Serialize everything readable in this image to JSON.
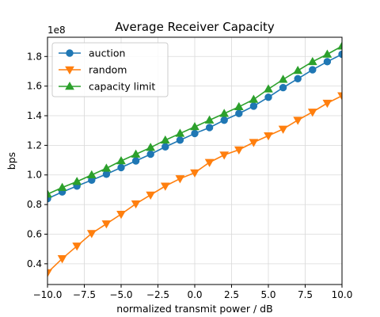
{
  "chart_data": {
    "type": "line",
    "title": "Average Receiver Capacity",
    "xlabel": "normalized transmit power / dB",
    "ylabel": "bps",
    "y_multiplier": "1e8",
    "xlim": [
      -10,
      10
    ],
    "ylim": [
      0.26,
      1.93
    ],
    "xticks": [
      -10,
      -7.5,
      -5,
      -2.5,
      0,
      2.5,
      5,
      7.5,
      10
    ],
    "xtick_labels": [
      "−10.0",
      "−7.5",
      "−5.0",
      "−2.5",
      "0.0",
      "2.5",
      "5.0",
      "7.5",
      "10.0"
    ],
    "yticks": [
      0.4,
      0.6,
      0.8,
      1.0,
      1.2,
      1.4,
      1.6,
      1.8
    ],
    "ytick_labels": [
      "0.4",
      "0.6",
      "0.8",
      "1.0",
      "1.2",
      "1.4",
      "1.6",
      "1.8"
    ],
    "grid": true,
    "legend_position": "top-left",
    "x": [
      -10,
      -9,
      -8,
      -7,
      -6,
      -5,
      -4,
      -3,
      -2,
      -1,
      0,
      1,
      2,
      3,
      4,
      5,
      6,
      7,
      8,
      9,
      10
    ],
    "series": [
      {
        "name": "auction",
        "color": "#1f77b4",
        "marker": "circle",
        "values": [
          0.84,
          0.885,
          0.925,
          0.965,
          1.005,
          1.05,
          1.095,
          1.14,
          1.19,
          1.235,
          1.28,
          1.32,
          1.37,
          1.415,
          1.465,
          1.525,
          1.59,
          1.65,
          1.71,
          1.765,
          1.815
        ]
      },
      {
        "name": "random",
        "color": "#ff7f0e",
        "marker": "triangle-down",
        "values": [
          0.34,
          0.435,
          0.52,
          0.605,
          0.67,
          0.735,
          0.805,
          0.865,
          0.925,
          0.975,
          1.015,
          1.085,
          1.135,
          1.17,
          1.22,
          1.265,
          1.31,
          1.37,
          1.425,
          1.485,
          1.535
        ]
      },
      {
        "name": "capacity limit",
        "color": "#2ca02c",
        "marker": "triangle-up",
        "values": [
          0.87,
          0.915,
          0.955,
          1.0,
          1.045,
          1.095,
          1.14,
          1.185,
          1.235,
          1.28,
          1.325,
          1.37,
          1.415,
          1.46,
          1.51,
          1.58,
          1.645,
          1.705,
          1.765,
          1.815,
          1.87
        ]
      }
    ]
  }
}
